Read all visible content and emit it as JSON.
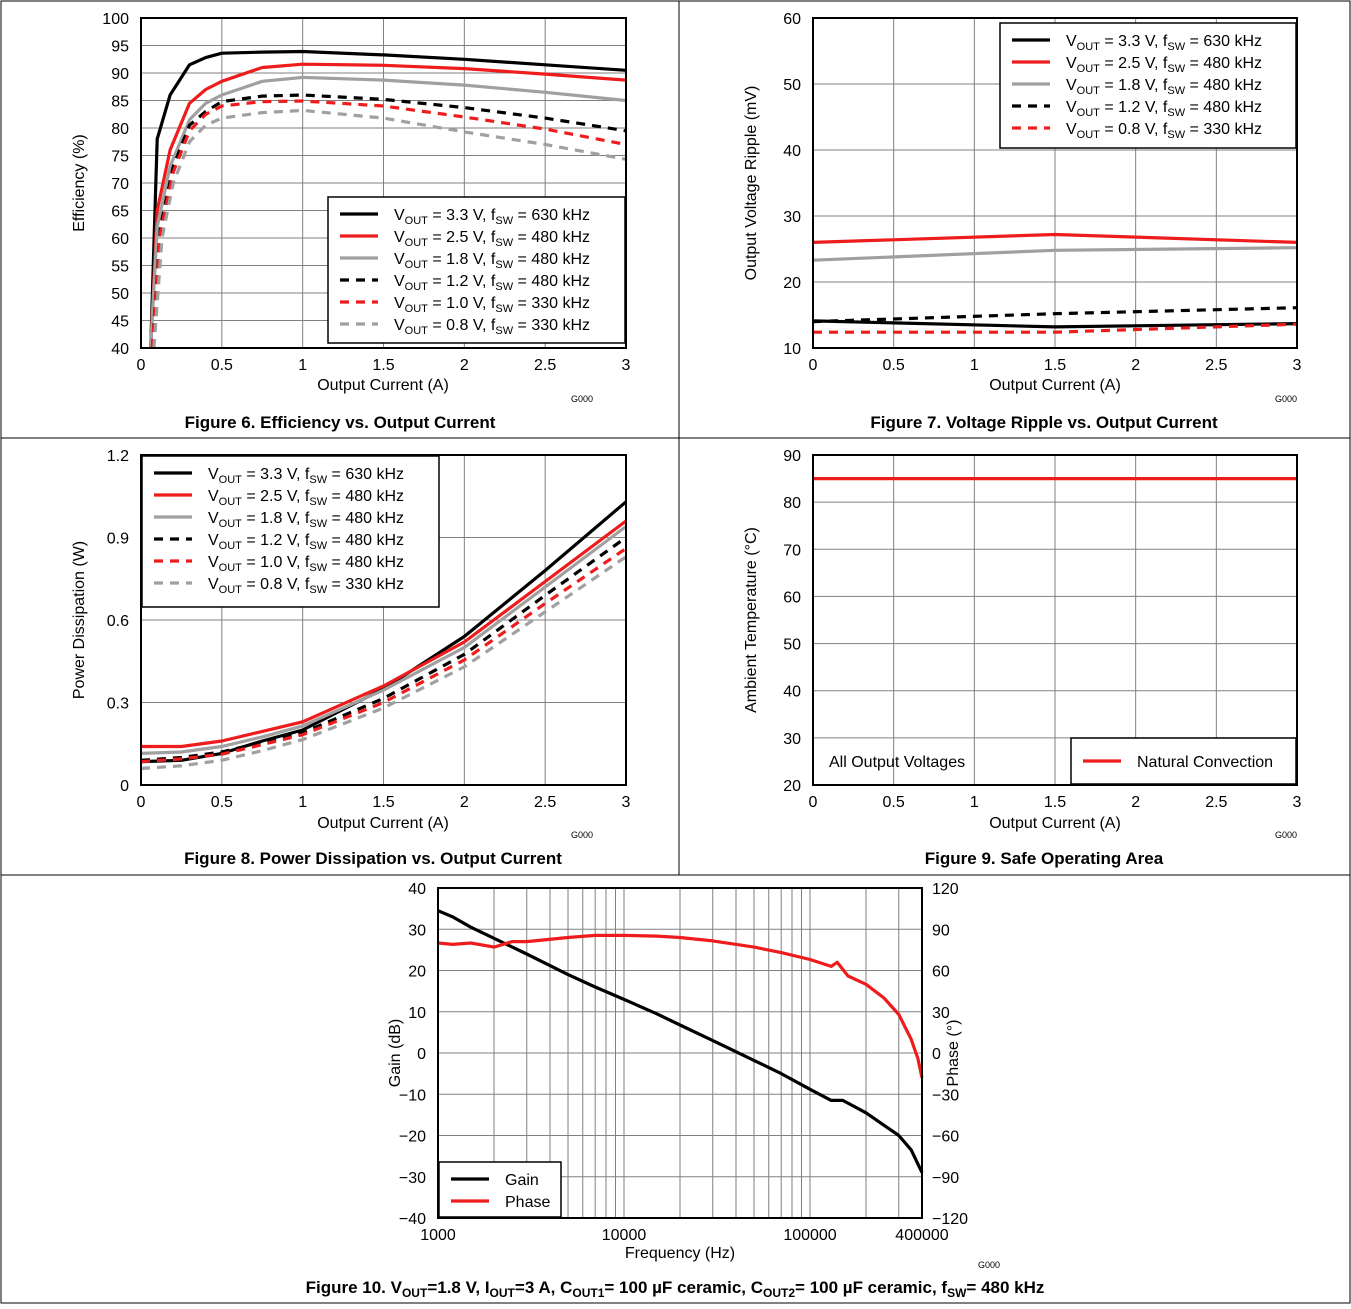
{
  "page": {
    "background": "#ffffff"
  },
  "chart_data": [
    {
      "id": "fig6",
      "type": "line",
      "caption": "Figure 6. Efficiency vs. Output Current",
      "code": "G000",
      "xlabel": "Output Current (A)",
      "ylabel": "Efficiency (%)",
      "xlim": [
        0,
        3
      ],
      "ylim": [
        40,
        100
      ],
      "xticks": [
        0,
        0.5,
        1,
        1.5,
        2,
        2.5,
        3
      ],
      "xtick_labels": [
        "0",
        "0.5",
        "1",
        "1.5",
        "2",
        "2.5",
        "3"
      ],
      "yticks": [
        40,
        45,
        50,
        55,
        60,
        65,
        70,
        75,
        80,
        85,
        90,
        95,
        100
      ],
      "ytick_labels": [
        "40",
        "45",
        "50",
        "55",
        "60",
        "65",
        "70",
        "75",
        "80",
        "85",
        "90",
        "95",
        "100"
      ],
      "grid": true,
      "legend_position": "bottom-right",
      "series": [
        {
          "name": "V_OUT = 3.3 V, f_SW = 630 kHz",
          "vout": "3.3",
          "fsw": "630",
          "color": "#000000",
          "dash": false,
          "x": [
            0.06,
            0.1,
            0.18,
            0.3,
            0.4,
            0.5,
            0.75,
            1,
            1.5,
            2,
            2.5,
            3
          ],
          "y": [
            40,
            78,
            86,
            91.5,
            92.8,
            93.6,
            93.8,
            93.9,
            93.3,
            92.5,
            91.5,
            90.5
          ]
        },
        {
          "name": "V_OUT = 2.5 V, f_SW = 480 kHz",
          "vout": "2.5",
          "fsw": "480",
          "color": "#ee1c1c",
          "dash": false,
          "x": [
            0.06,
            0.1,
            0.18,
            0.3,
            0.4,
            0.5,
            0.75,
            1,
            1.5,
            2,
            2.5,
            3
          ],
          "y": [
            40,
            65,
            76,
            84.5,
            87,
            88.5,
            91,
            91.6,
            91.4,
            90.8,
            89.8,
            88.7
          ]
        },
        {
          "name": "V_OUT = 1.8 V, f_SW = 480 kHz",
          "vout": "1.8",
          "fsw": "480",
          "color": "#a0a0a0",
          "dash": false,
          "x": [
            0.06,
            0.1,
            0.18,
            0.3,
            0.4,
            0.5,
            0.75,
            1,
            1.5,
            2,
            2.5,
            3
          ],
          "y": [
            40,
            62,
            73,
            81.5,
            84.5,
            86,
            88.5,
            89.2,
            88.7,
            87.8,
            86.5,
            85
          ]
        },
        {
          "name": "V_OUT = 1.2 V, f_SW = 480 kHz",
          "vout": "1.2",
          "fsw": "480",
          "color": "#000000",
          "dash": true,
          "x": [
            0.07,
            0.12,
            0.2,
            0.3,
            0.4,
            0.5,
            0.75,
            1,
            1.5,
            2,
            2.5,
            3
          ],
          "y": [
            40,
            62,
            73,
            80.5,
            83,
            84.8,
            85.8,
            86,
            85.2,
            83.7,
            81.8,
            79.5
          ]
        },
        {
          "name": "V_OUT = 1.0 V, f_SW = 330 kHz",
          "vout": "1.0",
          "fsw": "330",
          "color": "#ee1c1c",
          "dash": true,
          "x": [
            0.07,
            0.12,
            0.2,
            0.3,
            0.4,
            0.5,
            0.75,
            1,
            1.5,
            2,
            2.5,
            3
          ],
          "y": [
            40,
            61,
            72,
            79.5,
            82.5,
            84,
            84.8,
            84.9,
            84,
            82,
            79.8,
            77
          ]
        },
        {
          "name": "V_OUT = 0.8 V, f_SW = 330 kHz",
          "vout": "0.8",
          "fsw": "330",
          "color": "#a0a0a0",
          "dash": true,
          "x": [
            0.08,
            0.13,
            0.2,
            0.3,
            0.4,
            0.5,
            0.75,
            1,
            1.5,
            2,
            2.5,
            3
          ],
          "y": [
            40,
            60,
            70,
            77.5,
            80.5,
            81.8,
            82.8,
            83.2,
            81.8,
            79.3,
            77,
            74.3
          ]
        }
      ]
    },
    {
      "id": "fig7",
      "type": "line",
      "caption": "Figure 7. Voltage Ripple vs. Output Current",
      "code": "G000",
      "xlabel": "Output Current (A)",
      "ylabel": "Output Voltage Ripple (mV)",
      "xlim": [
        0,
        3
      ],
      "ylim": [
        10,
        60
      ],
      "xticks": [
        0,
        0.5,
        1,
        1.5,
        2,
        2.5,
        3
      ],
      "xtick_labels": [
        "0",
        "0.5",
        "1",
        "1.5",
        "2",
        "2.5",
        "3"
      ],
      "yticks": [
        10,
        20,
        30,
        40,
        50,
        60
      ],
      "ytick_labels": [
        "10",
        "20",
        "30",
        "40",
        "50",
        "60"
      ],
      "grid": true,
      "legend_position": "top-right",
      "series": [
        {
          "name": "V_OUT = 3.3 V, f_SW = 630 kHz",
          "vout": "3.3",
          "fsw": "630",
          "color": "#000000",
          "dash": false,
          "x": [
            0,
            1.5,
            3
          ],
          "y": [
            14.1,
            13.2,
            13.7
          ]
        },
        {
          "name": "V_OUT = 2.5 V, f_SW = 480 kHz",
          "vout": "2.5",
          "fsw": "480",
          "color": "#ee1c1c",
          "dash": false,
          "x": [
            0,
            1.5,
            3
          ],
          "y": [
            26,
            27.2,
            26
          ]
        },
        {
          "name": "V_OUT = 1.8 V, f_SW = 480 kHz",
          "vout": "1.8",
          "fsw": "480",
          "color": "#a0a0a0",
          "dash": false,
          "x": [
            0,
            1.5,
            3
          ],
          "y": [
            23.3,
            24.8,
            25.2
          ]
        },
        {
          "name": "V_OUT = 1.2 V, f_SW = 480 kHz",
          "vout": "1.2",
          "fsw": "480",
          "color": "#000000",
          "dash": true,
          "x": [
            0,
            1.5,
            3
          ],
          "y": [
            14,
            15.2,
            16.1
          ]
        },
        {
          "name": "V_OUT = 0.8 V, f_SW = 330 kHz",
          "vout": "0.8",
          "fsw": "330",
          "color": "#ee1c1c",
          "dash": true,
          "x": [
            0,
            1.5,
            3
          ],
          "y": [
            12.4,
            12.4,
            13.6
          ]
        }
      ]
    },
    {
      "id": "fig8",
      "type": "line",
      "caption": "Figure 8. Power Dissipation vs. Output Current",
      "code": "G000",
      "xlabel": "Output Current (A)",
      "ylabel": "Power Dissipation (W)",
      "xlim": [
        0,
        3
      ],
      "ylim": [
        0,
        1.2
      ],
      "xticks": [
        0,
        0.5,
        1,
        1.5,
        2,
        2.5,
        3
      ],
      "xtick_labels": [
        "0",
        "0.5",
        "1",
        "1.5",
        "2",
        "2.5",
        "3"
      ],
      "yticks": [
        0,
        0.3,
        0.6,
        0.9,
        1.2
      ],
      "ytick_labels": [
        "0",
        "0.3",
        "0.6",
        "0.9",
        "1.2"
      ],
      "grid": true,
      "legend_position": "top-left",
      "series": [
        {
          "name": "V_OUT = 3.3 V, f_SW = 630 kHz",
          "vout": "3.3",
          "fsw": "630",
          "color": "#000000",
          "dash": false,
          "x": [
            0,
            0.25,
            0.5,
            0.75,
            1,
            1.5,
            2,
            2.5,
            3
          ],
          "y": [
            0.085,
            0.09,
            0.115,
            0.16,
            0.2,
            0.35,
            0.54,
            0.78,
            1.03
          ]
        },
        {
          "name": "V_OUT = 2.5 V, f_SW = 480 kHz",
          "vout": "2.5",
          "fsw": "480",
          "color": "#ee1c1c",
          "dash": false,
          "x": [
            0,
            0.25,
            0.5,
            0.75,
            1,
            1.5,
            2,
            2.5,
            3
          ],
          "y": [
            0.14,
            0.14,
            0.16,
            0.195,
            0.23,
            0.36,
            0.52,
            0.74,
            0.96
          ]
        },
        {
          "name": "V_OUT = 1.8 V, f_SW = 480 kHz",
          "vout": "1.8",
          "fsw": "480",
          "color": "#a0a0a0",
          "dash": false,
          "x": [
            0,
            0.25,
            0.5,
            0.75,
            1,
            1.5,
            2,
            2.5,
            3
          ],
          "y": [
            0.115,
            0.12,
            0.14,
            0.175,
            0.215,
            0.345,
            0.5,
            0.72,
            0.94
          ]
        },
        {
          "name": "V_OUT = 1.2 V, f_SW = 480 kHz",
          "vout": "1.2",
          "fsw": "480",
          "color": "#000000",
          "dash": true,
          "x": [
            0,
            0.25,
            0.5,
            0.75,
            1,
            1.5,
            2,
            2.5,
            3
          ],
          "y": [
            0.09,
            0.1,
            0.12,
            0.155,
            0.19,
            0.315,
            0.475,
            0.69,
            0.9
          ]
        },
        {
          "name": "V_OUT = 1.0 V, f_SW = 480 kHz",
          "vout": "1.0",
          "fsw": "480",
          "color": "#ee1c1c",
          "dash": true,
          "x": [
            0,
            0.25,
            0.5,
            0.75,
            1,
            1.5,
            2,
            2.5,
            3
          ],
          "y": [
            0.085,
            0.095,
            0.112,
            0.147,
            0.183,
            0.3,
            0.455,
            0.66,
            0.86
          ]
        },
        {
          "name": "V_OUT = 0.8 V, f_SW = 330 kHz",
          "vout": "0.8",
          "fsw": "330",
          "color": "#a0a0a0",
          "dash": true,
          "x": [
            0,
            0.25,
            0.5,
            0.75,
            1,
            1.5,
            2,
            2.5,
            3
          ],
          "y": [
            0.06,
            0.07,
            0.09,
            0.125,
            0.165,
            0.28,
            0.43,
            0.63,
            0.83
          ]
        }
      ]
    },
    {
      "id": "fig9",
      "type": "line",
      "caption": "Figure 9. Safe Operating Area",
      "code": "G000",
      "xlabel": "Output Current (A)",
      "ylabel": "Ambient Temperature (°C)",
      "xlim": [
        0,
        3
      ],
      "ylim": [
        20,
        90
      ],
      "xticks": [
        0,
        0.5,
        1,
        1.5,
        2,
        2.5,
        3
      ],
      "xtick_labels": [
        "0",
        "0.5",
        "1",
        "1.5",
        "2",
        "2.5",
        "3"
      ],
      "yticks": [
        20,
        30,
        40,
        50,
        60,
        70,
        80,
        90
      ],
      "ytick_labels": [
        "20",
        "30",
        "40",
        "50",
        "60",
        "70",
        "80",
        "90"
      ],
      "grid": true,
      "legend_position": "bottom-right",
      "annotation": "All Output Voltages",
      "series": [
        {
          "name": "Natural Convection",
          "color": "#ee1c1c",
          "dash": false,
          "x": [
            0,
            3
          ],
          "y": [
            85,
            85
          ]
        }
      ]
    },
    {
      "id": "fig10",
      "type": "line",
      "caption_parts": {
        "prefix": "Figure 10. V",
        "vout_sub": "OUT",
        "vout_val": "=1.8 V, I",
        "iout_sub": "OUT",
        "iout_val": "=3 A, C",
        "c1_sub": "OUT1",
        "c1_val": "= 100 µF ceramic, C",
        "c2_sub": "OUT2",
        "c2_val": "= 100 µF ceramic, f",
        "fsw_sub": "SW",
        "fsw_val": "= 480 kHz"
      },
      "code": "G000",
      "xlabel": "Frequency (Hz)",
      "ylabel": "Gain (dB)",
      "y2label": "Phase (°)",
      "xscale": "log",
      "xlim": [
        1000,
        400000
      ],
      "ylim": [
        -40,
        40
      ],
      "y2lim": [
        -120,
        120
      ],
      "xtick_values": [
        1000,
        10000,
        100000,
        400000
      ],
      "xtick_labels": [
        "1000",
        "10000",
        "100000",
        "400000"
      ],
      "yticks": [
        -40,
        -30,
        -20,
        -10,
        0,
        10,
        20,
        30,
        40
      ],
      "ytick_labels": [
        "−40",
        "−30",
        "−20",
        "−10",
        "0",
        "10",
        "20",
        "30",
        "40"
      ],
      "y2ticks": [
        -120,
        -90,
        -60,
        -30,
        0,
        30,
        60,
        90,
        120
      ],
      "y2tick_labels": [
        "−120",
        "−90",
        "−60",
        "−30",
        "0",
        "30",
        "60",
        "90",
        "120"
      ],
      "grid": true,
      "legend_position": "bottom-left",
      "series": [
        {
          "name": "Gain",
          "axis": "left",
          "color": "#000000",
          "dash": false,
          "x": [
            1000,
            1200,
            1500,
            2000,
            3000,
            5000,
            7000,
            10000,
            15000,
            20000,
            30000,
            50000,
            70000,
            100000,
            130000,
            150000,
            200000,
            300000,
            350000,
            400000
          ],
          "y": [
            34.5,
            33,
            30.5,
            27.8,
            24,
            19,
            16,
            13,
            9.5,
            6.8,
            3,
            -1.8,
            -5,
            -8.8,
            -11.5,
            -11.5,
            -14.5,
            -20,
            -23.5,
            -29
          ]
        },
        {
          "name": "Phase",
          "axis": "right",
          "color": "#ee1c1c",
          "dash": false,
          "x": [
            1000,
            1200,
            1500,
            2000,
            2500,
            3000,
            5000,
            7000,
            10000,
            15000,
            20000,
            30000,
            50000,
            70000,
            100000,
            130000,
            140000,
            160000,
            200000,
            250000,
            300000,
            350000,
            380000,
            400000
          ],
          "y": [
            80,
            79,
            80,
            77,
            81,
            81,
            84,
            85.5,
            85.5,
            85,
            84,
            81.5,
            77,
            73,
            68,
            63,
            66,
            56,
            50,
            40,
            28,
            10,
            -4,
            -18
          ]
        }
      ]
    }
  ]
}
